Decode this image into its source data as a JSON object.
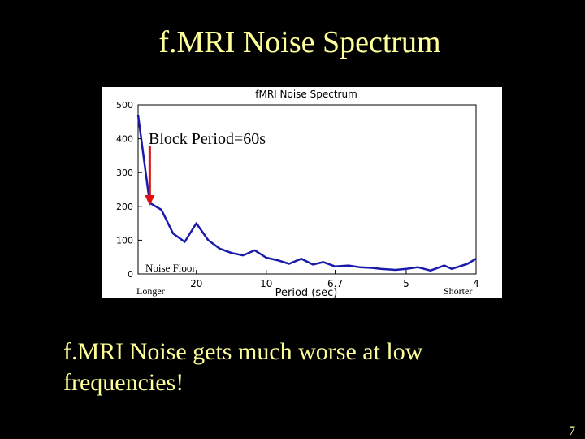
{
  "slide": {
    "title": "f.MRI Noise Spectrum",
    "caption_line1": "f.MRI Noise gets much worse at low",
    "caption_line2": "frequencies!",
    "slide_number": "7",
    "title_color": "#ffff99",
    "background_color": "#000000"
  },
  "chart_data": {
    "type": "line",
    "title": "fMRI Noise Spectrum",
    "xlabel": "Period (sec)",
    "ylabel": "",
    "x_scale": "frequency (reciprocal of period)",
    "x_tick_labels": [
      "20",
      "10",
      "6.7",
      "5",
      "4"
    ],
    "y_ticks": [
      0,
      100,
      200,
      300,
      400,
      500
    ],
    "ylim": [
      0,
      500
    ],
    "series": [
      {
        "color": "#1a1aaa",
        "x_period_sec": [
          120,
          60,
          40,
          30,
          24,
          20,
          17.1,
          15,
          13.3,
          12,
          10.9,
          10,
          9.2,
          8.6,
          8,
          7.5,
          7.1,
          6.7,
          6.3,
          6,
          5.7,
          5.5,
          5.2,
          5,
          4.8,
          4.6,
          4.4,
          4.3,
          4.1,
          4
        ],
        "values": [
          470,
          210,
          190,
          120,
          95,
          150,
          100,
          75,
          62,
          55,
          70,
          48,
          40,
          30,
          45,
          28,
          35,
          22,
          25,
          20,
          18,
          15,
          12,
          15,
          20,
          10,
          25,
          15,
          30,
          45
        ]
      }
    ],
    "annotations": [
      {
        "text": "Block Period=60s",
        "arrow_x_period_sec": 60,
        "arrow_color": "#dd1111"
      },
      {
        "text": "Noise Floor"
      },
      {
        "text": "Longer"
      },
      {
        "text": "Shorter"
      }
    ],
    "grid": false
  }
}
